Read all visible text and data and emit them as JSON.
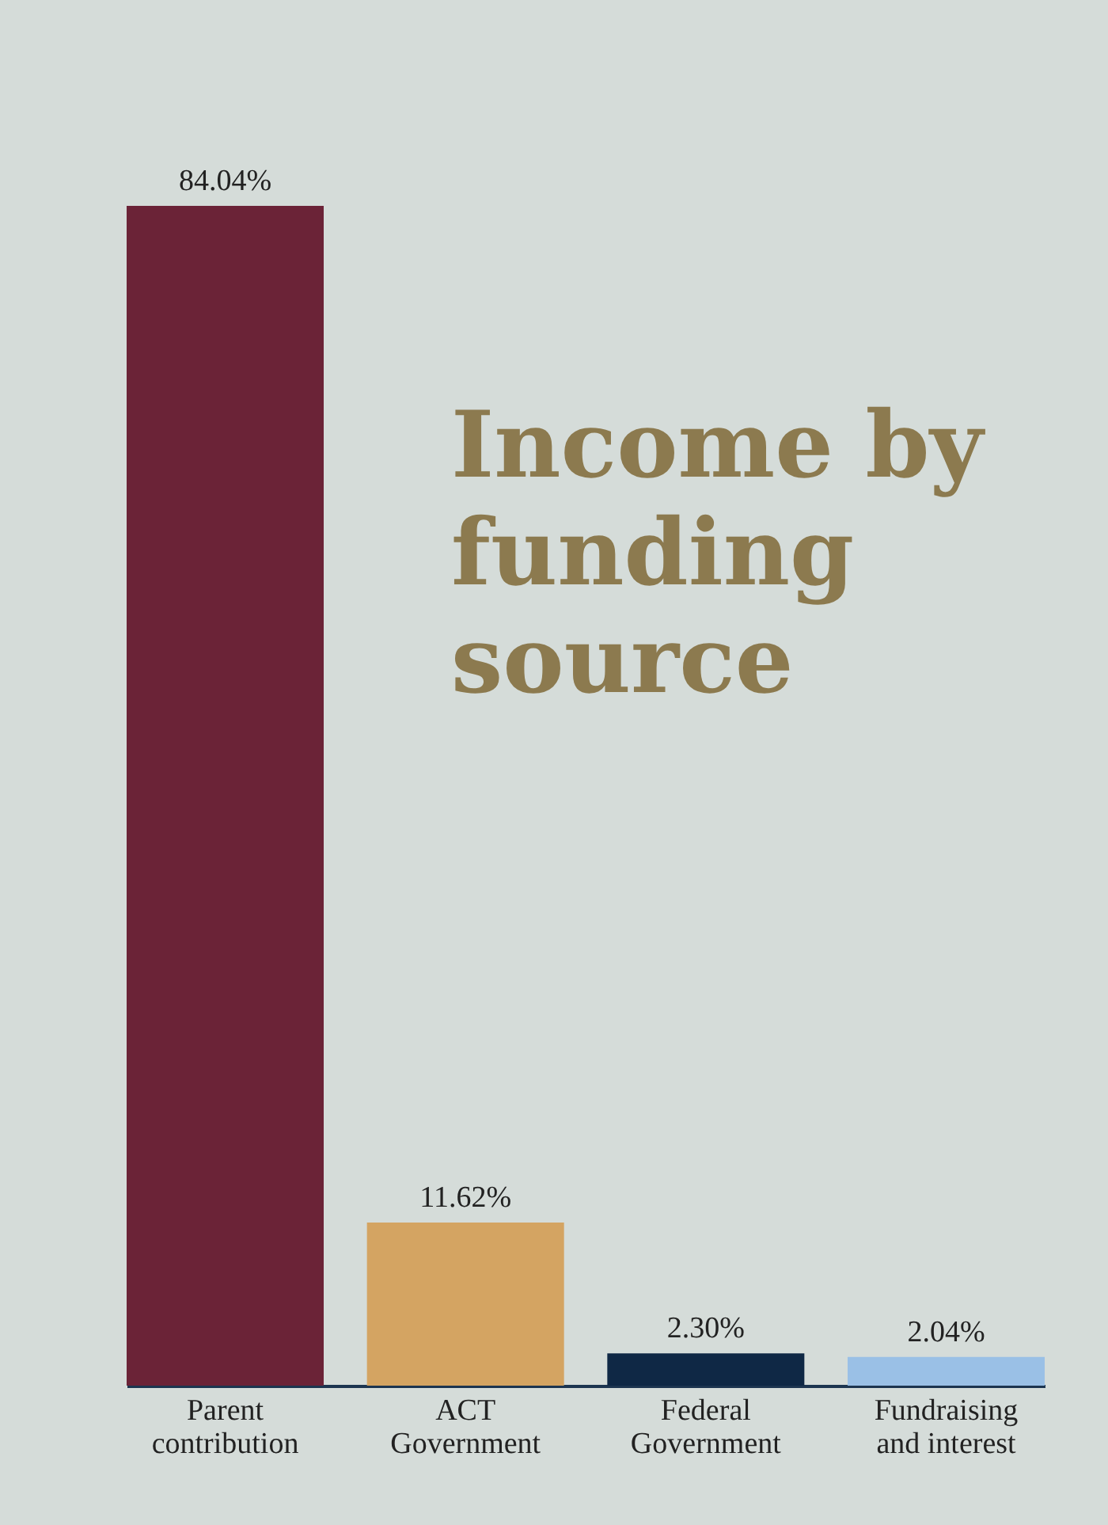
{
  "chart_data": {
    "type": "bar",
    "title": "Income by funding source",
    "categories": [
      "Parent contribution",
      "ACT Government",
      "Federal Government",
      "Fundraising and interest"
    ],
    "values": [
      84.04,
      11.62,
      2.3,
      2.04
    ],
    "colors": [
      "#6b2337",
      "#d4a462",
      "#0f2845",
      "#9ac0e6"
    ],
    "value_labels": [
      "84.04%",
      "11.62%",
      "2.30%",
      "2.04%"
    ],
    "grid": false
  }
}
